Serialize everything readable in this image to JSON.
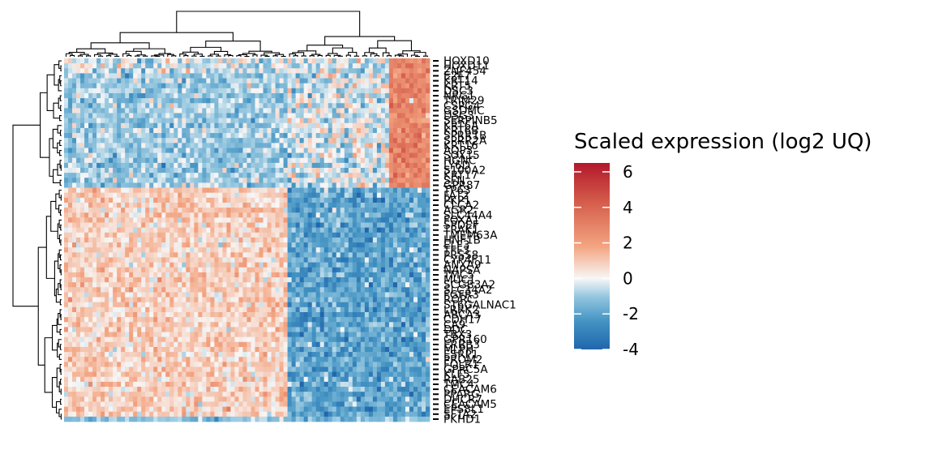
{
  "chart_data": {
    "type": "heatmap",
    "rows": [
      "HOXD10",
      "HOXD11",
      "ZNF454",
      "E2F7",
      "KRT14",
      "KRT5",
      "DSC3",
      "NRG1",
      "TRIM29",
      "CSPG4",
      "GSDMC",
      "DSG3",
      "SERPINB5",
      "KRT6A",
      "KRT6B",
      "SPRR1B",
      "SPRR2A",
      "KRT16",
      "AQP3",
      "SOX15",
      "HGNC",
      "LY6D",
      "S100A2",
      "KRT17",
      "SFN",
      "GPR87",
      "TP63",
      "FAT2",
      "PKP1",
      "CLCA2",
      "AGR2",
      "SLC44A4",
      "FOXA1",
      "SPDEF",
      "TRAK1",
      "TMEM63A",
      "HNF1B",
      "ELF3",
      "TFF3",
      "PRSS8",
      "CYP4F11",
      "ANXA9",
      "NAPSA",
      "TMC5",
      "MUC1",
      "SCGB3A2",
      "SLC34A2",
      "FGFR3",
      "RORC",
      "ST6GALNAC1",
      "LRRK2",
      "ABCA3",
      "CDH17",
      "CA9",
      "DDC",
      "TBX3",
      "GPR160",
      "ERBB3",
      "MLPH",
      "ESRP1",
      "PROM2",
      "FOLR1",
      "GPRC5A",
      "KLF5",
      "RAB25",
      "TMC4",
      "CEACAM6",
      "PPARG",
      "DHCR7",
      "CEACAM5",
      "EPS8L1",
      "SFTA2",
      "PKHD1"
    ],
    "n_rows": 73,
    "n_cols": 90,
    "group_split_row": 26,
    "group_split_col": 55,
    "value_range": [
      -4,
      6.5
    ],
    "legend": {
      "title": "Scaled expression (log2 UQ)",
      "ticks": [
        6,
        4,
        2,
        0,
        -2,
        -4
      ]
    },
    "colors": {
      "low": "#2166ac",
      "mid": "#f7f7f7",
      "high": "#b2182b"
    }
  }
}
